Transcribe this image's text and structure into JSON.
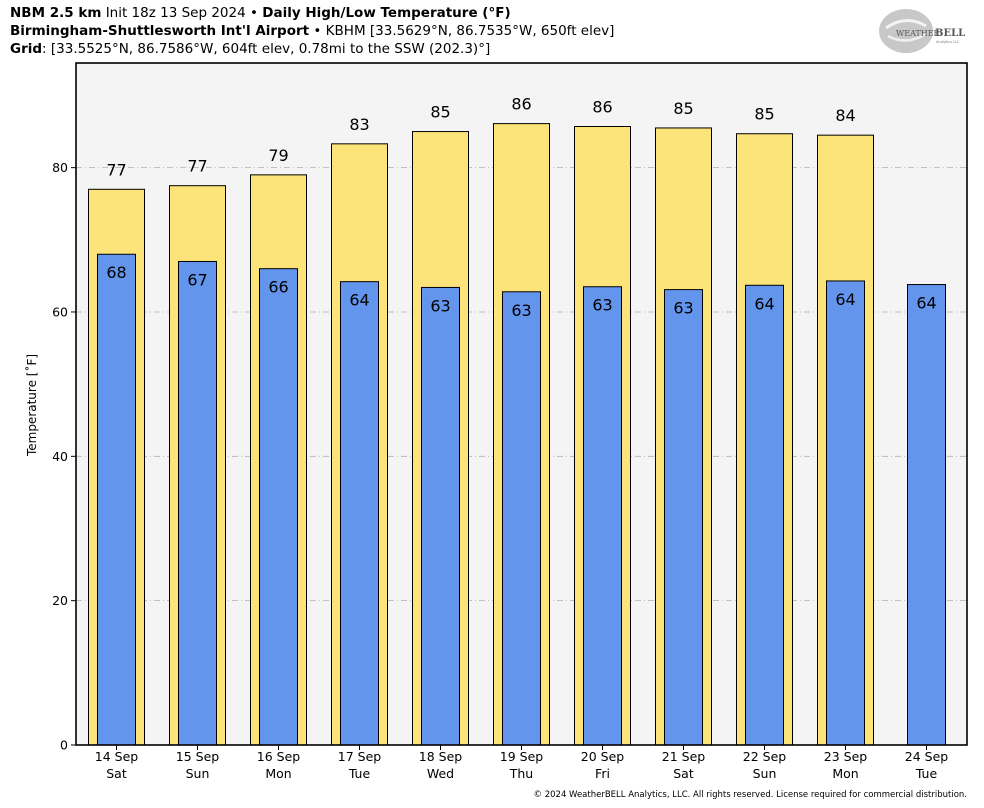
{
  "header": {
    "line1": {
      "bold1": "NBM 2.5 km",
      "text1": "Init 18z 13 Sep 2024",
      "sep": "•",
      "bold2": "Daily High/Low Temperature (°F)"
    },
    "line2": {
      "bold": "Birmingham-Shuttlesworth Int'l Airport",
      "sep": "•",
      "text": "KBHM [33.5629°N, 86.7535°W, 650ft elev]"
    },
    "line3": {
      "bold": "Grid",
      "text": ": [33.5525°N, 86.7586°W, 604ft elev, 0.78mi to the SSW (202.3)°]"
    }
  },
  "logo": {
    "text_big": "WEATHER",
    "text_bell": "BELL",
    "text_small": "Analytics LLC"
  },
  "copyright": "© 2024 WeatherBELL Analytics, LLC. All rights reserved. License required for commercial distribution.",
  "colors": {
    "high": "#fde47a",
    "low": "#6495ed",
    "plot_bg": "#f4f4f4",
    "grid": "#b0b0b0"
  },
  "chart_data": {
    "type": "bar",
    "title": "Daily High/Low Temperature (°F)",
    "ylabel": "Temperature [˚F]",
    "ylim": [
      0,
      94.5
    ],
    "yticks": [
      0,
      20,
      40,
      60,
      80
    ],
    "grid": true,
    "categories": [
      {
        "date": "14 Sep",
        "day": "Sat"
      },
      {
        "date": "15 Sep",
        "day": "Sun"
      },
      {
        "date": "16 Sep",
        "day": "Mon"
      },
      {
        "date": "17 Sep",
        "day": "Tue"
      },
      {
        "date": "18 Sep",
        "day": "Wed"
      },
      {
        "date": "19 Sep",
        "day": "Thu"
      },
      {
        "date": "20 Sep",
        "day": "Fri"
      },
      {
        "date": "21 Sep",
        "day": "Sat"
      },
      {
        "date": "22 Sep",
        "day": "Sun"
      },
      {
        "date": "23 Sep",
        "day": "Mon"
      },
      {
        "date": "24 Sep",
        "day": "Tue"
      }
    ],
    "series": [
      {
        "name": "High",
        "values": [
          77.0,
          77.5,
          79.0,
          83.3,
          85.0,
          86.1,
          85.7,
          85.5,
          84.7,
          84.5,
          null
        ],
        "labels": [
          "77",
          "77",
          "79",
          "83",
          "85",
          "86",
          "86",
          "85",
          "85",
          "84",
          null
        ]
      },
      {
        "name": "Low",
        "values": [
          68.0,
          67.0,
          66.0,
          64.2,
          63.4,
          62.8,
          63.5,
          63.1,
          63.7,
          64.3,
          63.8
        ],
        "labels": [
          "68",
          "67",
          "66",
          "64",
          "63",
          "63",
          "63",
          "63",
          "64",
          "64",
          "64"
        ]
      }
    ]
  }
}
